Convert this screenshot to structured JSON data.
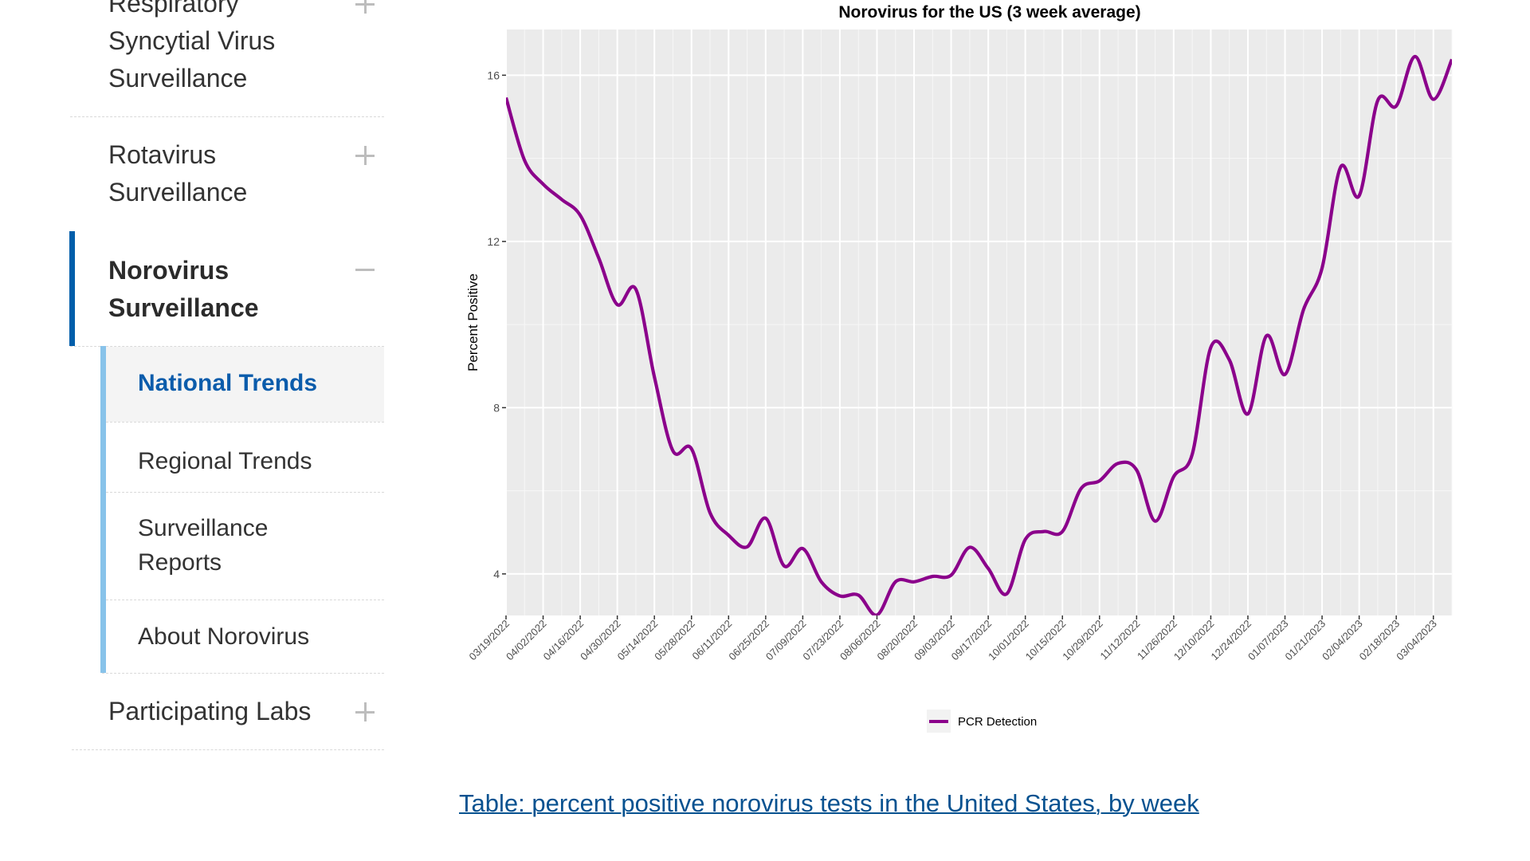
{
  "sidebar": {
    "items": [
      {
        "lines": [
          "Respiratory",
          "Syncytial Virus",
          "Surveillance"
        ],
        "toggle": "plus-icon",
        "active": false
      },
      {
        "lines": [
          "Rotavirus",
          "Surveillance"
        ],
        "toggle": "plus-icon",
        "active": false
      },
      {
        "lines": [
          "Norovirus",
          "Surveillance"
        ],
        "toggle": "minus-icon",
        "active": true,
        "children": [
          {
            "lines": [
              "National Trends"
            ],
            "current": true
          },
          {
            "lines": [
              "Regional Trends"
            ],
            "current": false
          },
          {
            "lines": [
              "Surveillance",
              "Reports"
            ],
            "current": false
          },
          {
            "lines": [
              "About Norovirus"
            ],
            "current": false
          }
        ]
      },
      {
        "lines": [
          "Participating Labs"
        ],
        "toggle": "plus-icon",
        "active": false
      }
    ]
  },
  "colors": {
    "active_bar": "#005eaa",
    "sub_bar": "#88c3ea",
    "current_text": "#0b5cab",
    "link": "#075290",
    "series_line": "#8b008b",
    "panel_bg": "#ebebeb"
  },
  "table_link": "Table: percent positive norovirus tests in the United States, by week",
  "chart_data": {
    "type": "line",
    "title": "Norovirus for the US (3 week average)",
    "xlabel": "",
    "ylabel": "Percent Positive",
    "ylim": [
      3.0,
      17.1
    ],
    "yticks": [
      4,
      8,
      12,
      16
    ],
    "grid": true,
    "legend_position": "bottom",
    "x": [
      "03/19/2022",
      "03/26/2022",
      "04/02/2022",
      "04/09/2022",
      "04/16/2022",
      "04/23/2022",
      "04/30/2022",
      "05/07/2022",
      "05/14/2022",
      "05/21/2022",
      "05/28/2022",
      "06/04/2022",
      "06/11/2022",
      "06/18/2022",
      "06/25/2022",
      "07/02/2022",
      "07/09/2022",
      "07/16/2022",
      "07/23/2022",
      "07/30/2022",
      "08/06/2022",
      "08/13/2022",
      "08/20/2022",
      "08/27/2022",
      "09/03/2022",
      "09/10/2022",
      "09/17/2022",
      "09/24/2022",
      "10/01/2022",
      "10/08/2022",
      "10/15/2022",
      "10/22/2022",
      "10/29/2022",
      "11/05/2022",
      "11/12/2022",
      "11/19/2022",
      "11/26/2022",
      "12/03/2022",
      "12/10/2022",
      "12/17/2022",
      "12/24/2022",
      "12/31/2022",
      "01/07/2023",
      "01/14/2023",
      "01/21/2023",
      "01/28/2023",
      "02/04/2023",
      "02/11/2023",
      "02/18/2023",
      "02/25/2023",
      "03/04/2023",
      "03/11/2023"
    ],
    "xtick_labels": [
      "03/19/2022",
      "04/02/2022",
      "04/16/2022",
      "04/30/2022",
      "05/14/2022",
      "05/28/2022",
      "06/11/2022",
      "06/25/2022",
      "07/09/2022",
      "07/23/2022",
      "08/06/2022",
      "08/20/2022",
      "09/03/2022",
      "09/17/2022",
      "10/01/2022",
      "10/15/2022",
      "10/29/2022",
      "11/12/2022",
      "11/26/2022",
      "12/10/2022",
      "12/24/2022",
      "01/07/2023",
      "01/21/2023",
      "02/04/2023",
      "02/18/2023",
      "03/04/2023"
    ],
    "series": [
      {
        "name": "PCR Detection",
        "values": [
          15.46,
          13.95,
          13.38,
          13.01,
          12.63,
          11.6,
          10.48,
          10.85,
          8.74,
          6.96,
          7.01,
          5.47,
          4.93,
          4.65,
          5.34,
          4.19,
          4.61,
          3.81,
          3.47,
          3.49,
          3.01,
          3.81,
          3.81,
          3.94,
          3.97,
          4.64,
          4.13,
          3.52,
          4.83,
          5.02,
          5.02,
          6.05,
          6.24,
          6.66,
          6.5,
          5.27,
          6.34,
          6.88,
          9.45,
          9.15,
          7.85,
          9.73,
          8.8,
          10.36,
          11.36,
          13.79,
          13.1,
          15.39,
          15.26,
          16.45,
          15.42,
          16.38
        ]
      }
    ]
  }
}
